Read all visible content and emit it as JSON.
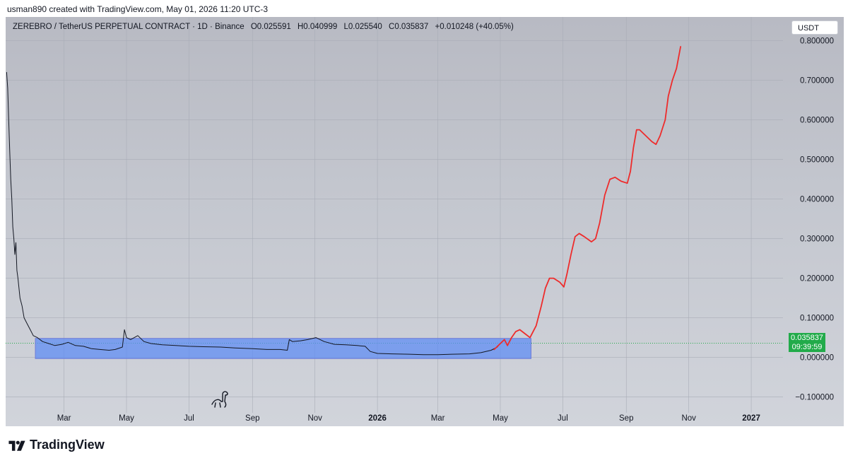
{
  "attribution": "usman890 created with TradingView.com, May 01, 2026 11:20 UTC-3",
  "legend": {
    "symbol": "ZEREBRO / TetherUS PERPETUAL CONTRACT · 1D · Binance",
    "open": "O0.025591",
    "high": "H0.040999",
    "low": "L0.025540",
    "close": "C0.035837",
    "change": "+0.010248 (+40.05%)"
  },
  "currency_button": "USDT",
  "price_badge": {
    "price": "0.035837",
    "countdown": "09:39:59",
    "color": "#22ab4a"
  },
  "brand": "TradingView",
  "chart_data": {
    "type": "line",
    "y_scale": "linear",
    "y_range": [
      -0.14,
      0.86
    ],
    "y_ticks": [
      {
        "value": 0.8,
        "label": "0.800000"
      },
      {
        "value": 0.7,
        "label": "0.700000"
      },
      {
        "value": 0.6,
        "label": "0.600000"
      },
      {
        "value": 0.5,
        "label": "0.500000"
      },
      {
        "value": 0.4,
        "label": "0.400000"
      },
      {
        "value": 0.3,
        "label": "0.300000"
      },
      {
        "value": 0.2,
        "label": "0.200000"
      },
      {
        "value": 0.1,
        "label": "0.100000"
      },
      {
        "value": 0.0,
        "label": "0.000000"
      },
      {
        "value": -0.1,
        "label": "−0.100000"
      }
    ],
    "x_range": [
      "2025-01-03",
      "2027-02-01"
    ],
    "x_ticks": [
      {
        "date": "2025-03-01",
        "label": "Mar",
        "bold": false
      },
      {
        "date": "2025-05-01",
        "label": "May",
        "bold": false
      },
      {
        "date": "2025-07-01",
        "label": "Jul",
        "bold": false
      },
      {
        "date": "2025-09-01",
        "label": "Sep",
        "bold": false
      },
      {
        "date": "2025-11-01",
        "label": "Nov",
        "bold": false
      },
      {
        "date": "2026-01-01",
        "label": "2026",
        "bold": true
      },
      {
        "date": "2026-03-01",
        "label": "Mar",
        "bold": false
      },
      {
        "date": "2026-05-01",
        "label": "May",
        "bold": false
      },
      {
        "date": "2026-07-01",
        "label": "Jul",
        "bold": false
      },
      {
        "date": "2026-09-01",
        "label": "Sep",
        "bold": false
      },
      {
        "date": "2026-11-01",
        "label": "Nov",
        "bold": false
      },
      {
        "date": "2027-01-01",
        "label": "2027",
        "bold": true
      }
    ],
    "current_price": 0.035837,
    "series": [
      {
        "role": "price-history",
        "color": "#131722",
        "points": [
          [
            "2025-01-04",
            0.72
          ],
          [
            "2025-01-05",
            0.68
          ],
          [
            "2025-01-06",
            0.6
          ],
          [
            "2025-01-07",
            0.52
          ],
          [
            "2025-01-08",
            0.45
          ],
          [
            "2025-01-09",
            0.4
          ],
          [
            "2025-01-10",
            0.33
          ],
          [
            "2025-01-11",
            0.3
          ],
          [
            "2025-01-12",
            0.26
          ],
          [
            "2025-01-13",
            0.29
          ],
          [
            "2025-01-14",
            0.22
          ],
          [
            "2025-01-15",
            0.2
          ],
          [
            "2025-01-17",
            0.15
          ],
          [
            "2025-01-19",
            0.13
          ],
          [
            "2025-01-21",
            0.1
          ],
          [
            "2025-01-24",
            0.085
          ],
          [
            "2025-01-27",
            0.07
          ],
          [
            "2025-01-30",
            0.055
          ],
          [
            "2025-02-03",
            0.05
          ],
          [
            "2025-02-08",
            0.04
          ],
          [
            "2025-02-14",
            0.035
          ],
          [
            "2025-02-20",
            0.03
          ],
          [
            "2025-02-27",
            0.033
          ],
          [
            "2025-03-05",
            0.038
          ],
          [
            "2025-03-12",
            0.03
          ],
          [
            "2025-03-20",
            0.028
          ],
          [
            "2025-03-28",
            0.022
          ],
          [
            "2025-04-05",
            0.02
          ],
          [
            "2025-04-14",
            0.018
          ],
          [
            "2025-04-20",
            0.02
          ],
          [
            "2025-04-27",
            0.026
          ],
          [
            "2025-04-29",
            0.07
          ],
          [
            "2025-05-01",
            0.05
          ],
          [
            "2025-05-05",
            0.045
          ],
          [
            "2025-05-12",
            0.055
          ],
          [
            "2025-05-18",
            0.04
          ],
          [
            "2025-05-25",
            0.035
          ],
          [
            "2025-06-05",
            0.032
          ],
          [
            "2025-06-18",
            0.03
          ],
          [
            "2025-07-01",
            0.028
          ],
          [
            "2025-07-15",
            0.027
          ],
          [
            "2025-08-01",
            0.026
          ],
          [
            "2025-08-15",
            0.024
          ],
          [
            "2025-09-01",
            0.022
          ],
          [
            "2025-09-15",
            0.02
          ],
          [
            "2025-09-28",
            0.02
          ],
          [
            "2025-10-05",
            0.018
          ],
          [
            "2025-10-07",
            0.045
          ],
          [
            "2025-10-10",
            0.04
          ],
          [
            "2025-10-18",
            0.042
          ],
          [
            "2025-10-25",
            0.045
          ],
          [
            "2025-11-02",
            0.05
          ],
          [
            "2025-11-10",
            0.04
          ],
          [
            "2025-11-20",
            0.033
          ],
          [
            "2025-12-01",
            0.032
          ],
          [
            "2025-12-12",
            0.03
          ],
          [
            "2025-12-20",
            0.028
          ],
          [
            "2025-12-25",
            0.015
          ],
          [
            "2026-01-01",
            0.01
          ],
          [
            "2026-01-15",
            0.009
          ],
          [
            "2026-02-01",
            0.008
          ],
          [
            "2026-02-15",
            0.007
          ],
          [
            "2026-03-01",
            0.007
          ],
          [
            "2026-03-15",
            0.008
          ],
          [
            "2026-04-01",
            0.009
          ],
          [
            "2026-04-12",
            0.012
          ],
          [
            "2026-04-22",
            0.018
          ],
          [
            "2026-04-28",
            0.026
          ],
          [
            "2026-05-01",
            0.035837
          ]
        ]
      },
      {
        "role": "projection",
        "color": "#ee2b2b",
        "points": [
          [
            "2026-04-25",
            0.02
          ],
          [
            "2026-05-01",
            0.035
          ],
          [
            "2026-05-05",
            0.045
          ],
          [
            "2026-05-08",
            0.03
          ],
          [
            "2026-05-12",
            0.05
          ],
          [
            "2026-05-16",
            0.065
          ],
          [
            "2026-05-20",
            0.07
          ],
          [
            "2026-05-25",
            0.06
          ],
          [
            "2026-05-30",
            0.05
          ],
          [
            "2026-06-05",
            0.08
          ],
          [
            "2026-06-10",
            0.13
          ],
          [
            "2026-06-14",
            0.175
          ],
          [
            "2026-06-18",
            0.2
          ],
          [
            "2026-06-22",
            0.2
          ],
          [
            "2026-06-28",
            0.19
          ],
          [
            "2026-07-02",
            0.178
          ],
          [
            "2026-07-05",
            0.21
          ],
          [
            "2026-07-09",
            0.26
          ],
          [
            "2026-07-13",
            0.305
          ],
          [
            "2026-07-17",
            0.313
          ],
          [
            "2026-07-22",
            0.305
          ],
          [
            "2026-07-29",
            0.292
          ],
          [
            "2026-08-02",
            0.3
          ],
          [
            "2026-08-06",
            0.34
          ],
          [
            "2026-08-11",
            0.41
          ],
          [
            "2026-08-16",
            0.45
          ],
          [
            "2026-08-21",
            0.455
          ],
          [
            "2026-08-27",
            0.445
          ],
          [
            "2026-09-02",
            0.44
          ],
          [
            "2026-09-05",
            0.47
          ],
          [
            "2026-09-08",
            0.53
          ],
          [
            "2026-09-11",
            0.575
          ],
          [
            "2026-09-14",
            0.575
          ],
          [
            "2026-09-20",
            0.56
          ],
          [
            "2026-09-26",
            0.545
          ],
          [
            "2026-09-30",
            0.538
          ],
          [
            "2026-10-04",
            0.56
          ],
          [
            "2026-10-09",
            0.6
          ],
          [
            "2026-10-12",
            0.66
          ],
          [
            "2026-10-16",
            0.7
          ],
          [
            "2026-10-20",
            0.73
          ],
          [
            "2026-10-24",
            0.785
          ]
        ]
      }
    ],
    "range_box": {
      "start": "2025-02-01",
      "end": "2026-05-31",
      "top": 0.048,
      "bottom": -0.003,
      "color": "#5b8af5"
    }
  }
}
